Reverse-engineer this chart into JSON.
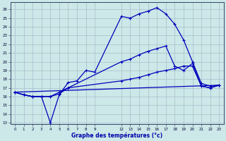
{
  "xlabel": "Graphe des températures (°c)",
  "bg_color": "#cce8e8",
  "grid_color": "#aabbcc",
  "line_color": "#0000bb",
  "xlim": [
    -0.5,
    23.5
  ],
  "ylim": [
    12.8,
    26.8
  ],
  "yticks": [
    13,
    14,
    15,
    16,
    17,
    18,
    19,
    20,
    21,
    22,
    23,
    24,
    25,
    26
  ],
  "xticks": [
    0,
    1,
    2,
    3,
    4,
    5,
    6,
    7,
    8,
    9,
    12,
    13,
    14,
    15,
    16,
    17,
    18,
    19,
    20,
    21,
    22,
    23
  ],
  "curve1_x": [
    0,
    1,
    2,
    3,
    4,
    5,
    6,
    7,
    8,
    9,
    12,
    13,
    14,
    15,
    16,
    17,
    18,
    19,
    20,
    21,
    22,
    23
  ],
  "curve1_y": [
    16.5,
    16.2,
    16.0,
    16.0,
    13.0,
    16.2,
    17.6,
    17.8,
    19.0,
    18.8,
    25.2,
    25.0,
    25.5,
    25.8,
    26.2,
    25.5,
    24.3,
    22.5,
    20.0,
    17.5,
    17.2,
    17.3
  ],
  "curve2_x": [
    0,
    1,
    2,
    3,
    4,
    5,
    6,
    12,
    13,
    14,
    15,
    16,
    17,
    18,
    19,
    20,
    21,
    22,
    23
  ],
  "curve2_y": [
    16.5,
    16.2,
    16.0,
    16.0,
    16.0,
    16.3,
    17.0,
    20.0,
    20.3,
    20.8,
    21.2,
    21.5,
    21.8,
    19.5,
    19.0,
    19.8,
    17.2,
    17.0,
    17.3
  ],
  "curve3_x": [
    0,
    1,
    2,
    3,
    4,
    5,
    6,
    12,
    13,
    14,
    15,
    16,
    17,
    18,
    19,
    20,
    21,
    22,
    23
  ],
  "curve3_y": [
    16.5,
    16.2,
    16.0,
    16.0,
    16.0,
    16.5,
    17.0,
    17.8,
    18.0,
    18.2,
    18.5,
    18.8,
    19.0,
    19.2,
    19.5,
    19.5,
    17.2,
    17.0,
    17.3
  ],
  "curve4_x": [
    0,
    23
  ],
  "curve4_y": [
    16.5,
    17.3
  ]
}
